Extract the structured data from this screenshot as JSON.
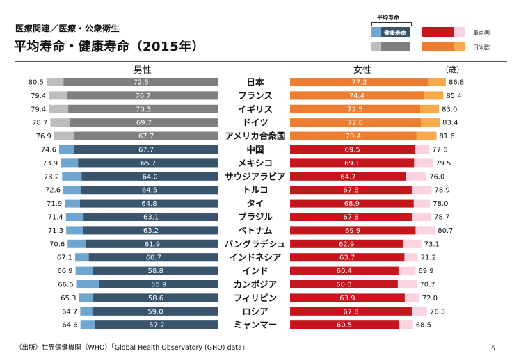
{
  "header": {
    "subtitle": "医療関連／医療・公衆衛生",
    "title": "平均寿命・健康寿命（2015年）"
  },
  "legend": {
    "bracket_label": "平均寿命",
    "inner_label": "健康寿命",
    "focus_label": "重点国",
    "advanced_label": "日米欧",
    "unit": "（歳）"
  },
  "columns": {
    "male": "男性",
    "female": "女性"
  },
  "footer": {
    "source": "（出所）世界保健機関（WHO）「Global Health Observatory (GHO) data」",
    "page": "6"
  },
  "colors": {
    "male_healthy_focus": "#3a546c",
    "male_life_focus": "#6fa6cf",
    "male_healthy_adv": "#7f7f7f",
    "male_life_adv": "#bdbdbd",
    "female_healthy_focus": "#c4161c",
    "female_life_focus": "#f9d3e0",
    "female_healthy_adv": "#ed7d31",
    "female_life_adv": "#f8a94a"
  },
  "chart_data": {
    "type": "bar",
    "orientation": "horizontal",
    "categories": [
      "日本",
      "フランス",
      "イギリス",
      "ドイツ",
      "アメリカ合衆国",
      "中国",
      "メキシコ",
      "サウジアラビア",
      "トルコ",
      "タイ",
      "ブラジル",
      "ベトナム",
      "バングラデシュ",
      "インドネシア",
      "インド",
      "カンボジア",
      "フィリピン",
      "ロシア",
      "ミャンマー"
    ],
    "groups": [
      "日米欧",
      "日米欧",
      "日米欧",
      "日米欧",
      "日米欧",
      "重点国",
      "重点国",
      "重点国",
      "重点国",
      "重点国",
      "重点国",
      "重点国",
      "重点国",
      "重点国",
      "重点国",
      "重点国",
      "重点国",
      "重点国",
      "重点国"
    ],
    "series": [
      {
        "name": "男性 平均寿命",
        "values": [
          80.5,
          79.4,
          79.4,
          78.7,
          76.9,
          74.6,
          73.9,
          73.2,
          72.6,
          71.9,
          71.4,
          71.3,
          70.6,
          67.1,
          66.9,
          66.6,
          65.3,
          64.7,
          64.6
        ]
      },
      {
        "name": "男性 健康寿命",
        "values": [
          72.5,
          70.7,
          70.3,
          69.7,
          67.7,
          67.7,
          65.7,
          64.0,
          64.5,
          64.8,
          63.1,
          63.2,
          61.9,
          60.7,
          58.8,
          55.9,
          58.6,
          59.0,
          57.7
        ]
      },
      {
        "name": "女性 平均寿命",
        "values": [
          86.8,
          85.4,
          83.0,
          83.4,
          81.6,
          77.6,
          79.5,
          76.0,
          78.9,
          78.0,
          78.7,
          80.7,
          73.1,
          71.2,
          69.9,
          70.7,
          72.0,
          76.3,
          68.5
        ]
      },
      {
        "name": "女性 健康寿命",
        "values": [
          77.2,
          74.4,
          72.5,
          72.8,
          70.4,
          69.5,
          69.1,
          64.7,
          67.8,
          68.9,
          67.8,
          69.9,
          62.9,
          63.7,
          60.4,
          60.0,
          63.9,
          67.8,
          60.5
        ]
      }
    ]
  }
}
